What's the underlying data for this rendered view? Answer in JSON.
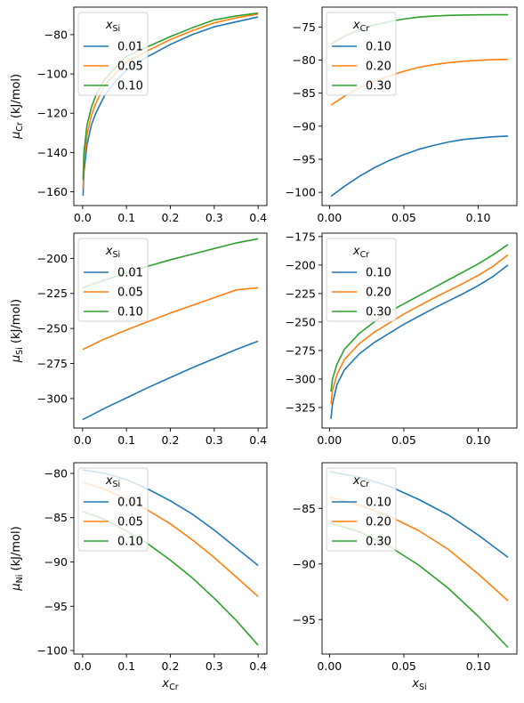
{
  "chart_data": [
    {
      "type": "line",
      "panel": "top-left",
      "ylabel": {
        "sym": "μ",
        "sub": "Cr",
        "unit": " (kJ/mol)"
      },
      "xlabel": null,
      "xlim": [
        -0.02,
        0.42
      ],
      "ylim": [
        -167,
        -66
      ],
      "xticks": [
        0.0,
        0.1,
        0.2,
        0.3,
        0.4
      ],
      "xticklabels": [
        "0.0",
        "0.1",
        "0.2",
        "0.3",
        "0.4"
      ],
      "yticks": [
        -160,
        -140,
        -120,
        -100,
        -80
      ],
      "yticklabels": [
        "−160",
        "−140",
        "−120",
        "−100",
        "−80"
      ],
      "legend": {
        "title_sym": "x",
        "title_sub": "Si",
        "placement": "top-left"
      },
      "series": [
        {
          "name": "0.01",
          "color": "#1f77b4",
          "x": [
            0.001,
            0.003,
            0.01,
            0.02,
            0.03,
            0.05,
            0.07,
            0.1,
            0.15,
            0.2,
            0.25,
            0.3,
            0.35,
            0.4
          ],
          "y": [
            -162,
            -150,
            -136,
            -126,
            -120,
            -111,
            -105,
            -98,
            -91,
            -85,
            -80,
            -76,
            -73.5,
            -71
          ]
        },
        {
          "name": "0.05",
          "color": "#ff7f0e",
          "x": [
            0.001,
            0.003,
            0.01,
            0.02,
            0.03,
            0.05,
            0.07,
            0.1,
            0.15,
            0.2,
            0.25,
            0.3,
            0.35,
            0.4
          ],
          "y": [
            -158,
            -145,
            -131,
            -121,
            -115,
            -106,
            -101,
            -94,
            -88,
            -82.5,
            -78,
            -74,
            -71.5,
            -69.5
          ]
        },
        {
          "name": "0.10",
          "color": "#2ca02c",
          "x": [
            0.001,
            0.003,
            0.01,
            0.02,
            0.03,
            0.05,
            0.07,
            0.1,
            0.15,
            0.2,
            0.25,
            0.3,
            0.35,
            0.4
          ],
          "y": [
            -154,
            -140,
            -126,
            -117,
            -111,
            -103,
            -98,
            -91,
            -86,
            -81,
            -76.5,
            -72.5,
            -70.5,
            -69
          ]
        }
      ]
    },
    {
      "type": "line",
      "panel": "top-right",
      "ylabel": null,
      "xlabel": null,
      "xlim": [
        -0.005,
        0.126
      ],
      "ylim": [
        -102,
        -72
      ],
      "xticks": [
        0.0,
        0.05,
        0.1
      ],
      "xticklabels": [
        "0.00",
        "0.05",
        "0.10"
      ],
      "yticks": [
        -100,
        -95,
        -90,
        -85,
        -80,
        -75
      ],
      "yticklabels": [
        "−100",
        "−95",
        "−90",
        "−85",
        "−80",
        "−75"
      ],
      "legend": {
        "title_sym": "x",
        "title_sub": "Cr",
        "placement": "top-left"
      },
      "series": [
        {
          "name": "0.10",
          "color": "#1f77b4",
          "x": [
            0.001,
            0.01,
            0.02,
            0.03,
            0.04,
            0.05,
            0.06,
            0.07,
            0.08,
            0.09,
            0.1,
            0.11,
            0.12
          ],
          "y": [
            -100.6,
            -99.1,
            -97.6,
            -96.3,
            -95.2,
            -94.3,
            -93.5,
            -92.9,
            -92.4,
            -92.0,
            -91.8,
            -91.6,
            -91.5
          ]
        },
        {
          "name": "0.20",
          "color": "#ff7f0e",
          "x": [
            0.001,
            0.01,
            0.02,
            0.03,
            0.04,
            0.05,
            0.06,
            0.07,
            0.08,
            0.09,
            0.1,
            0.11,
            0.12
          ],
          "y": [
            -86.8,
            -85.5,
            -84.2,
            -83.2,
            -82.4,
            -81.7,
            -81.1,
            -80.7,
            -80.4,
            -80.2,
            -80.05,
            -79.95,
            -79.9
          ]
        },
        {
          "name": "0.30",
          "color": "#2ca02c",
          "x": [
            0.001,
            0.01,
            0.02,
            0.03,
            0.04,
            0.05,
            0.06,
            0.07,
            0.08,
            0.09,
            0.1,
            0.11,
            0.12
          ],
          "y": [
            -77.6,
            -76.4,
            -75.4,
            -74.7,
            -74.2,
            -73.8,
            -73.5,
            -73.35,
            -73.25,
            -73.2,
            -73.17,
            -73.15,
            -73.15
          ]
        }
      ]
    },
    {
      "type": "line",
      "panel": "middle-left",
      "ylabel": {
        "sym": "μ",
        "sub": "Si",
        "unit": " (kJ/mol)"
      },
      "xlabel": null,
      "xlim": [
        -0.02,
        0.42
      ],
      "ylim": [
        -321,
        -182
      ],
      "xticks": [
        0.0,
        0.1,
        0.2,
        0.3,
        0.4
      ],
      "xticklabels": [
        "0.0",
        "0.1",
        "0.2",
        "0.3",
        "0.4"
      ],
      "yticks": [
        -300,
        -275,
        -250,
        -225,
        -200
      ],
      "yticklabels": [
        "−300",
        "−275",
        "−250",
        "−225",
        "−200"
      ],
      "legend": {
        "title_sym": "x",
        "title_sub": "Si",
        "placement": "top-left"
      },
      "series": [
        {
          "name": "0.01",
          "color": "#1f77b4",
          "x": [
            0.0,
            0.05,
            0.1,
            0.15,
            0.2,
            0.25,
            0.3,
            0.35,
            0.4
          ],
          "y": [
            -315,
            -307,
            -299.5,
            -292,
            -285,
            -278,
            -271.5,
            -265,
            -259
          ]
        },
        {
          "name": "0.05",
          "color": "#ff7f0e",
          "x": [
            0.0,
            0.05,
            0.1,
            0.15,
            0.2,
            0.25,
            0.3,
            0.35,
            0.4
          ],
          "y": [
            -265,
            -257.5,
            -251,
            -245,
            -239,
            -233.5,
            -228,
            -222.5,
            -221
          ]
        },
        {
          "name": "0.10",
          "color": "#2ca02c",
          "x": [
            0.0,
            0.05,
            0.1,
            0.15,
            0.2,
            0.25,
            0.3,
            0.35,
            0.4
          ],
          "y": [
            -221,
            -215.5,
            -210.5,
            -205.5,
            -201,
            -197,
            -193,
            -189,
            -186
          ]
        }
      ]
    },
    {
      "type": "line",
      "panel": "middle-right",
      "ylabel": null,
      "xlabel": null,
      "xlim": [
        -0.005,
        0.126
      ],
      "ylim": [
        -343,
        -172
      ],
      "xticks": [
        0.0,
        0.05,
        0.1
      ],
      "xticklabels": [
        "0.00",
        "0.05",
        "0.10"
      ],
      "yticks": [
        -325,
        -300,
        -275,
        -250,
        -225,
        -200,
        -175
      ],
      "yticklabels": [
        "−325",
        "−300",
        "−275",
        "−250",
        "−225",
        "−200",
        "−175"
      ],
      "legend": {
        "title_sym": "x",
        "title_sub": "Cr",
        "placement": "top-left"
      },
      "series": [
        {
          "name": "0.10",
          "color": "#1f77b4",
          "x": [
            0.001,
            0.002,
            0.005,
            0.01,
            0.02,
            0.03,
            0.04,
            0.05,
            0.06,
            0.07,
            0.08,
            0.09,
            0.1,
            0.11,
            0.12
          ],
          "y": [
            -335,
            -322,
            -305,
            -292,
            -278,
            -268,
            -260,
            -252,
            -245,
            -238,
            -231.5,
            -225,
            -218,
            -210,
            -200
          ]
        },
        {
          "name": "0.20",
          "color": "#ff7f0e",
          "x": [
            0.001,
            0.002,
            0.005,
            0.01,
            0.02,
            0.03,
            0.04,
            0.05,
            0.06,
            0.07,
            0.08,
            0.09,
            0.1,
            0.11,
            0.12
          ],
          "y": [
            -322,
            -310,
            -296,
            -283,
            -269,
            -259,
            -251,
            -243,
            -236,
            -229,
            -222.5,
            -216,
            -209,
            -201,
            -191
          ]
        },
        {
          "name": "0.30",
          "color": "#2ca02c",
          "x": [
            0.001,
            0.002,
            0.005,
            0.01,
            0.02,
            0.03,
            0.04,
            0.05,
            0.06,
            0.07,
            0.08,
            0.09,
            0.1,
            0.11,
            0.12
          ],
          "y": [
            -311,
            -300,
            -287,
            -274,
            -260,
            -250,
            -241,
            -234,
            -227,
            -220,
            -213,
            -206,
            -199,
            -191,
            -182
          ]
        }
      ]
    },
    {
      "type": "line",
      "panel": "bottom-left",
      "ylabel": {
        "sym": "μ",
        "sub": "Ni",
        "unit": " (kJ/mol)"
      },
      "xlabel": {
        "sym": "x",
        "sub": "Cr"
      },
      "xlim": [
        -0.02,
        0.42
      ],
      "ylim": [
        -100.4,
        -78.8
      ],
      "xticks": [
        0.0,
        0.1,
        0.2,
        0.3,
        0.4
      ],
      "xticklabels": [
        "0.0",
        "0.1",
        "0.2",
        "0.3",
        "0.4"
      ],
      "yticks": [
        -100,
        -95,
        -90,
        -85,
        -80
      ],
      "yticklabels": [
        "−100",
        "−95",
        "−90",
        "−85",
        "−80"
      ],
      "legend": {
        "title_sym": "x",
        "title_sub": "Si",
        "placement": "top-left"
      },
      "series": [
        {
          "name": "0.01",
          "color": "#1f77b4",
          "x": [
            0.0,
            0.05,
            0.1,
            0.15,
            0.2,
            0.25,
            0.3,
            0.35,
            0.4
          ],
          "y": [
            -79.6,
            -80.0,
            -80.7,
            -81.8,
            -83.1,
            -84.6,
            -86.4,
            -88.4,
            -90.4
          ]
        },
        {
          "name": "0.05",
          "color": "#ff7f0e",
          "x": [
            0.0,
            0.05,
            0.1,
            0.15,
            0.2,
            0.25,
            0.3,
            0.35,
            0.4
          ],
          "y": [
            -81.0,
            -81.8,
            -82.9,
            -84.2,
            -85.7,
            -87.5,
            -89.5,
            -91.7,
            -93.9
          ]
        },
        {
          "name": "0.10",
          "color": "#2ca02c",
          "x": [
            0.0,
            0.05,
            0.1,
            0.15,
            0.2,
            0.25,
            0.3,
            0.35,
            0.4
          ],
          "y": [
            -84.3,
            -85.2,
            -86.5,
            -88.0,
            -89.8,
            -91.8,
            -94.1,
            -96.6,
            -99.4
          ]
        }
      ]
    },
    {
      "type": "line",
      "panel": "bottom-right",
      "ylabel": null,
      "xlabel": {
        "sym": "x",
        "sub": "Si"
      },
      "xlim": [
        -0.005,
        0.126
      ],
      "ylim": [
        -98.1,
        -80.9
      ],
      "xticks": [
        0.0,
        0.05,
        0.1
      ],
      "xticklabels": [
        "0.00",
        "0.05",
        "0.10"
      ],
      "yticks": [
        -95,
        -90,
        -85
      ],
      "yticklabels": [
        "−95",
        "−90",
        "−85"
      ],
      "legend": {
        "title_sym": "x",
        "title_sub": "Cr",
        "placement": "top-left"
      },
      "series": [
        {
          "name": "0.10",
          "color": "#1f77b4",
          "x": [
            0.0,
            0.02,
            0.04,
            0.06,
            0.08,
            0.1,
            0.12
          ],
          "y": [
            -81.7,
            -82.2,
            -83.0,
            -84.2,
            -85.6,
            -87.4,
            -89.4
          ]
        },
        {
          "name": "0.20",
          "color": "#ff7f0e",
          "x": [
            0.0,
            0.02,
            0.04,
            0.06,
            0.08,
            0.1,
            0.12
          ],
          "y": [
            -84.0,
            -84.7,
            -85.7,
            -87.0,
            -88.7,
            -90.9,
            -93.3
          ]
        },
        {
          "name": "0.30",
          "color": "#2ca02c",
          "x": [
            0.0,
            0.02,
            0.04,
            0.06,
            0.08,
            0.1,
            0.12
          ],
          "y": [
            -86.3,
            -87.1,
            -88.4,
            -90.1,
            -92.2,
            -94.7,
            -97.5
          ]
        }
      ]
    }
  ]
}
